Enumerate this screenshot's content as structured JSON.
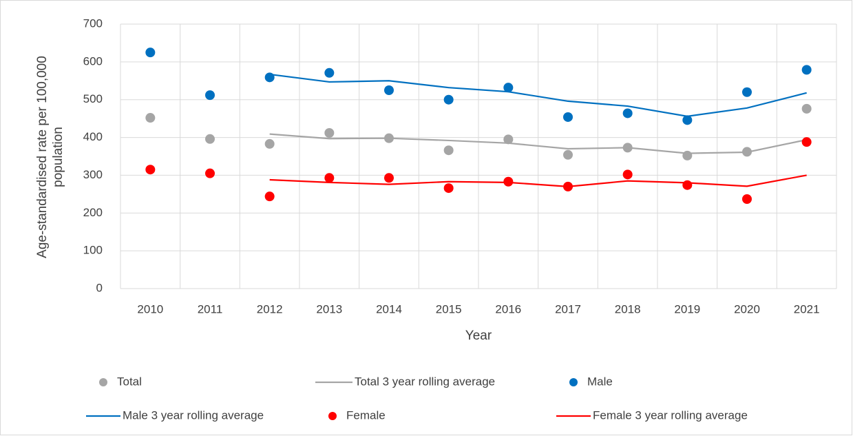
{
  "chart_data": {
    "type": "line",
    "x_label": "Year",
    "y_label": "Age-standardised rate per 100,000 population",
    "categories": [
      "2010",
      "2011",
      "2012",
      "2013",
      "2014",
      "2015",
      "2016",
      "2017",
      "2018",
      "2019",
      "2020",
      "2021"
    ],
    "ylim": [
      0,
      700
    ],
    "yticks": [
      0,
      100,
      200,
      300,
      400,
      500,
      600,
      700
    ],
    "grid": true,
    "series": [
      {
        "name": "Total",
        "style": "marker",
        "color": "#a5a5a5",
        "values": [
          452,
          396,
          383,
          412,
          398,
          366,
          395,
          354,
          373,
          352,
          362,
          476
        ]
      },
      {
        "name": "Total 3 year rolling average",
        "style": "line",
        "color": "#a5a5a5",
        "values": [
          null,
          null,
          409,
          397,
          398,
          392,
          385,
          370,
          373,
          358,
          361,
          394
        ]
      },
      {
        "name": "Male",
        "style": "marker",
        "color": "#0070c0",
        "values": [
          625,
          512,
          559,
          571,
          525,
          500,
          532,
          454,
          464,
          446,
          520,
          579
        ]
      },
      {
        "name": "Male 3 year rolling average",
        "style": "line",
        "color": "#0070c0",
        "values": [
          null,
          null,
          567,
          547,
          550,
          532,
          521,
          496,
          483,
          456,
          478,
          518
        ]
      },
      {
        "name": "Female",
        "style": "marker",
        "color": "#ff0000",
        "values": [
          315,
          305,
          244,
          293,
          293,
          266,
          283,
          270,
          302,
          274,
          237,
          388
        ]
      },
      {
        "name": "Female 3 year rolling average",
        "style": "line",
        "color": "#ff0000",
        "values": [
          null,
          null,
          288,
          281,
          276,
          283,
          281,
          270,
          285,
          280,
          271,
          300
        ]
      }
    ]
  }
}
